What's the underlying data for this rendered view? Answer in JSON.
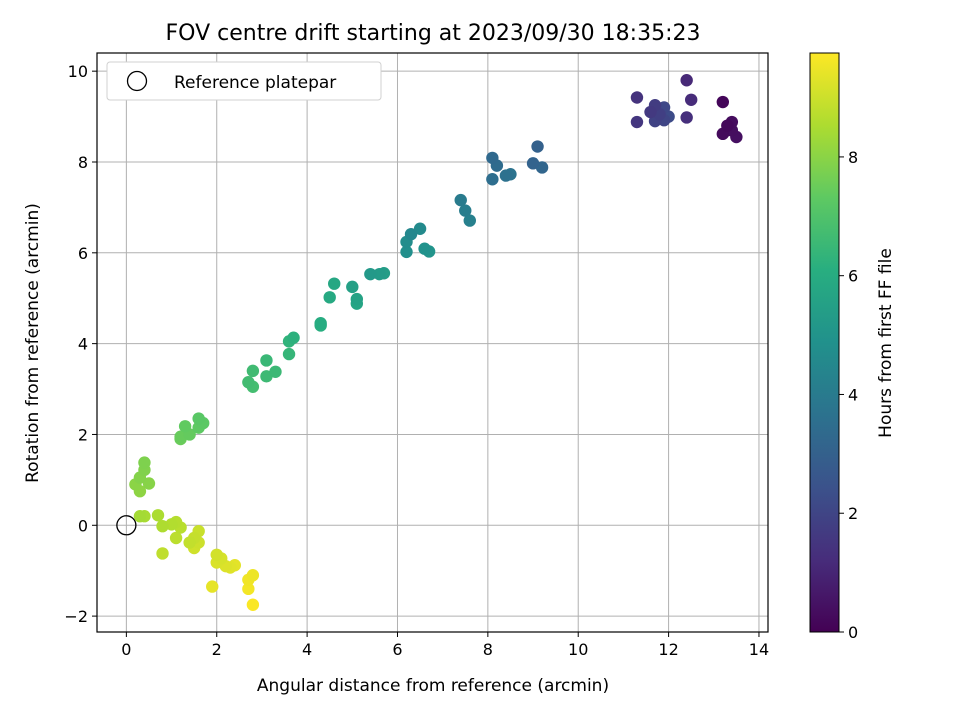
{
  "chart_data": {
    "type": "scatter",
    "title": "FOV centre drift starting at 2023/09/30 18:35:23",
    "xlabel": "Angular distance from reference (arcmin)",
    "ylabel": "Rotation from reference (arcmin)",
    "xlim": [
      -0.65,
      14.2
    ],
    "ylim": [
      -2.35,
      10.4
    ],
    "xticks": [
      0,
      2,
      4,
      6,
      8,
      10,
      12,
      14
    ],
    "yticks": [
      -2,
      0,
      2,
      4,
      6,
      8,
      10
    ],
    "grid": true,
    "legend": {
      "placement": "top-left",
      "entries": [
        "Reference platepar"
      ]
    },
    "reference_point": {
      "x": 0,
      "y": 0,
      "marker": "open-circle",
      "label": "Reference platepar"
    },
    "colorbar": {
      "label": "Hours from first FF file",
      "colormap": "viridis",
      "range": [
        0,
        9.75
      ],
      "ticks": [
        0,
        2,
        4,
        6,
        8
      ]
    },
    "points": [
      {
        "x": 13.2,
        "y": 9.32,
        "h": 0.15
      },
      {
        "x": 13.3,
        "y": 8.8,
        "h": 0.2
      },
      {
        "x": 13.2,
        "y": 8.62,
        "h": 0.25
      },
      {
        "x": 13.4,
        "y": 8.88,
        "h": 0.3
      },
      {
        "x": 13.4,
        "y": 8.7,
        "h": 0.35
      },
      {
        "x": 13.5,
        "y": 8.55,
        "h": 0.4
      },
      {
        "x": 13.3,
        "y": 8.7,
        "h": 0.45
      },
      {
        "x": 12.4,
        "y": 9.8,
        "h": 1.1
      },
      {
        "x": 12.5,
        "y": 9.37,
        "h": 1.2
      },
      {
        "x": 12.4,
        "y": 8.98,
        "h": 1.3
      },
      {
        "x": 11.3,
        "y": 9.42,
        "h": 1.4
      },
      {
        "x": 11.3,
        "y": 8.88,
        "h": 1.5
      },
      {
        "x": 11.6,
        "y": 9.1,
        "h": 1.6
      },
      {
        "x": 11.7,
        "y": 9.25,
        "h": 1.7
      },
      {
        "x": 11.8,
        "y": 9.05,
        "h": 1.8
      },
      {
        "x": 11.7,
        "y": 8.9,
        "h": 1.9
      },
      {
        "x": 11.9,
        "y": 8.92,
        "h": 2.0
      },
      {
        "x": 11.9,
        "y": 9.2,
        "h": 2.1
      },
      {
        "x": 12.0,
        "y": 9.0,
        "h": 2.2
      },
      {
        "x": 9.1,
        "y": 8.34,
        "h": 3.0
      },
      {
        "x": 9.0,
        "y": 7.97,
        "h": 3.1
      },
      {
        "x": 9.2,
        "y": 7.88,
        "h": 3.2
      },
      {
        "x": 8.1,
        "y": 8.09,
        "h": 3.3
      },
      {
        "x": 8.2,
        "y": 7.92,
        "h": 3.4
      },
      {
        "x": 8.1,
        "y": 7.62,
        "h": 3.5
      },
      {
        "x": 8.4,
        "y": 7.7,
        "h": 3.6
      },
      {
        "x": 8.5,
        "y": 7.73,
        "h": 3.7
      },
      {
        "x": 7.4,
        "y": 7.16,
        "h": 4.0
      },
      {
        "x": 7.5,
        "y": 6.93,
        "h": 4.1
      },
      {
        "x": 7.6,
        "y": 6.71,
        "h": 4.2
      },
      {
        "x": 6.3,
        "y": 6.41,
        "h": 4.5
      },
      {
        "x": 6.5,
        "y": 6.53,
        "h": 4.6
      },
      {
        "x": 6.2,
        "y": 6.24,
        "h": 4.7
      },
      {
        "x": 6.2,
        "y": 6.02,
        "h": 4.8
      },
      {
        "x": 6.6,
        "y": 6.09,
        "h": 4.9
      },
      {
        "x": 6.7,
        "y": 6.03,
        "h": 5.0
      },
      {
        "x": 5.4,
        "y": 5.53,
        "h": 5.2
      },
      {
        "x": 5.6,
        "y": 5.53,
        "h": 5.3
      },
      {
        "x": 5.7,
        "y": 5.55,
        "h": 5.4
      },
      {
        "x": 5.0,
        "y": 5.25,
        "h": 5.5
      },
      {
        "x": 5.1,
        "y": 4.98,
        "h": 5.6
      },
      {
        "x": 5.1,
        "y": 4.88,
        "h": 5.7
      },
      {
        "x": 4.6,
        "y": 5.32,
        "h": 5.8
      },
      {
        "x": 4.5,
        "y": 5.02,
        "h": 5.9
      },
      {
        "x": 4.3,
        "y": 4.45,
        "h": 6.0
      },
      {
        "x": 4.3,
        "y": 4.4,
        "h": 6.1
      },
      {
        "x": 3.7,
        "y": 4.13,
        "h": 6.2
      },
      {
        "x": 3.6,
        "y": 4.05,
        "h": 6.3
      },
      {
        "x": 3.6,
        "y": 3.77,
        "h": 6.4
      },
      {
        "x": 3.1,
        "y": 3.63,
        "h": 6.5
      },
      {
        "x": 3.3,
        "y": 3.38,
        "h": 6.55
      },
      {
        "x": 3.1,
        "y": 3.28,
        "h": 6.6
      },
      {
        "x": 2.8,
        "y": 3.4,
        "h": 6.65
      },
      {
        "x": 2.7,
        "y": 3.15,
        "h": 6.7
      },
      {
        "x": 2.8,
        "y": 3.05,
        "h": 6.75
      },
      {
        "x": 1.6,
        "y": 2.35,
        "h": 7.2
      },
      {
        "x": 1.7,
        "y": 2.25,
        "h": 7.25
      },
      {
        "x": 1.6,
        "y": 2.15,
        "h": 7.3
      },
      {
        "x": 1.3,
        "y": 2.18,
        "h": 7.35
      },
      {
        "x": 1.4,
        "y": 2.0,
        "h": 7.4
      },
      {
        "x": 1.2,
        "y": 1.95,
        "h": 7.45
      },
      {
        "x": 1.2,
        "y": 1.9,
        "h": 7.5
      },
      {
        "x": 0.4,
        "y": 1.38,
        "h": 7.8
      },
      {
        "x": 0.4,
        "y": 1.22,
        "h": 7.85
      },
      {
        "x": 0.3,
        "y": 1.05,
        "h": 7.9
      },
      {
        "x": 0.5,
        "y": 0.92,
        "h": 7.95
      },
      {
        "x": 0.2,
        "y": 0.9,
        "h": 8.0
      },
      {
        "x": 0.3,
        "y": 0.75,
        "h": 8.05
      },
      {
        "x": 0.3,
        "y": 0.2,
        "h": 8.4
      },
      {
        "x": 0.4,
        "y": 0.2,
        "h": 8.45
      },
      {
        "x": 0.7,
        "y": 0.22,
        "h": 8.5
      },
      {
        "x": 0.8,
        "y": -0.02,
        "h": 8.55
      },
      {
        "x": 1.0,
        "y": 0.02,
        "h": 8.6
      },
      {
        "x": 1.1,
        "y": 0.07,
        "h": 8.65
      },
      {
        "x": 1.2,
        "y": -0.05,
        "h": 8.7
      },
      {
        "x": 1.1,
        "y": -0.28,
        "h": 8.75
      },
      {
        "x": 0.8,
        "y": -0.62,
        "h": 8.8
      },
      {
        "x": 1.4,
        "y": -0.38,
        "h": 8.85
      },
      {
        "x": 1.5,
        "y": -0.28,
        "h": 8.9
      },
      {
        "x": 1.6,
        "y": -0.13,
        "h": 8.95
      },
      {
        "x": 1.6,
        "y": -0.38,
        "h": 9.0
      },
      {
        "x": 1.5,
        "y": -0.5,
        "h": 9.05
      },
      {
        "x": 2.0,
        "y": -0.65,
        "h": 9.1
      },
      {
        "x": 2.1,
        "y": -0.73,
        "h": 9.15
      },
      {
        "x": 2.0,
        "y": -0.82,
        "h": 9.2
      },
      {
        "x": 2.2,
        "y": -0.9,
        "h": 9.25
      },
      {
        "x": 2.3,
        "y": -0.93,
        "h": 9.3
      },
      {
        "x": 2.4,
        "y": -0.88,
        "h": 9.35
      },
      {
        "x": 1.9,
        "y": -1.35,
        "h": 9.4
      },
      {
        "x": 2.8,
        "y": -1.1,
        "h": 9.5
      },
      {
        "x": 2.7,
        "y": -1.2,
        "h": 9.55
      },
      {
        "x": 2.7,
        "y": -1.4,
        "h": 9.6
      },
      {
        "x": 2.8,
        "y": -1.75,
        "h": 9.7
      }
    ]
  }
}
